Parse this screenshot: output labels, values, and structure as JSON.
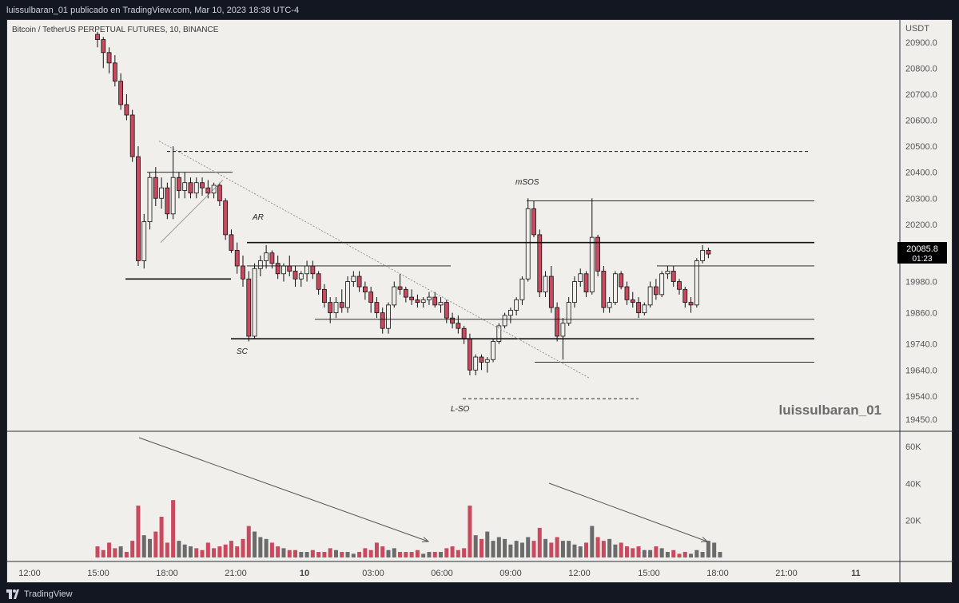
{
  "header": {
    "published": "luissulbaran_01 publicado en TradingView.com, Mar 10, 2023 18:38 UTC-4",
    "symbol_line": "Bitcoin / TetherUS PERPETUAL FUTURES, 10, BINANCE"
  },
  "footer": {
    "brand": "TradingView"
  },
  "watermark": "luissulbaran_01",
  "colors": {
    "background": "#f0efec",
    "up_candle": "#f0efec",
    "down_candle": "#c9495e",
    "vol_up": "#6b6b6b",
    "vol_down": "#c9495e",
    "level_line": "#111111",
    "price_tag": "#000000"
  },
  "price_scale": {
    "currency": "USDT",
    "ticks": [
      "20900.0",
      "20800.0",
      "20700.0",
      "20600.0",
      "20500.0",
      "20400.0",
      "20300.0",
      "20200.0",
      "20085.8",
      "19980.0",
      "19860.0",
      "19740.0",
      "19640.0",
      "19540.0",
      "19450.0"
    ],
    "last_price": "20085.8",
    "countdown": "01:23"
  },
  "volume_scale": {
    "ticks": [
      "60K",
      "40K",
      "20K"
    ]
  },
  "time_axis": {
    "ticks": [
      "12:00",
      "15:00",
      "18:00",
      "21:00",
      "10",
      "03:00",
      "06:00",
      "09:00",
      "12:00",
      "15:00",
      "18:00",
      "21:00",
      "11"
    ]
  },
  "annotations": {
    "ar": "AR",
    "sc": "SC",
    "lso": "L-SO",
    "msos": "mSOS"
  },
  "chart_data": {
    "type": "candlestick",
    "symbol": "Bitcoin / TetherUS PERPETUAL FUTURES",
    "interval": "10",
    "exchange": "BINANCE",
    "ylim": [
      19420,
      20930
    ],
    "last_price": 20085.8,
    "ohlc": [
      [
        20930,
        20940,
        20880,
        20910
      ],
      [
        20910,
        20920,
        20800,
        20860
      ],
      [
        20860,
        20880,
        20780,
        20820
      ],
      [
        20820,
        20850,
        20730,
        20750
      ],
      [
        20750,
        20780,
        20640,
        20660
      ],
      [
        20660,
        20700,
        20600,
        20620
      ],
      [
        20620,
        20640,
        20440,
        20460
      ],
      [
        20460,
        20500,
        20040,
        20060
      ],
      [
        20060,
        20240,
        20030,
        20210
      ],
      [
        20210,
        20400,
        20180,
        20380
      ],
      [
        20380,
        20420,
        20270,
        20300
      ],
      [
        20300,
        20380,
        20260,
        20340
      ],
      [
        20340,
        20360,
        20220,
        20240
      ],
      [
        20240,
        20500,
        20220,
        20380
      ],
      [
        20380,
        20400,
        20300,
        20330
      ],
      [
        20330,
        20400,
        20300,
        20360
      ],
      [
        20360,
        20380,
        20300,
        20320
      ],
      [
        20320,
        20380,
        20300,
        20360
      ],
      [
        20360,
        20380,
        20310,
        20340
      ],
      [
        20340,
        20370,
        20300,
        20320
      ],
      [
        20320,
        20360,
        20300,
        20350
      ],
      [
        20350,
        20360,
        20270,
        20290
      ],
      [
        20290,
        20300,
        20140,
        20160
      ],
      [
        20160,
        20180,
        20090,
        20100
      ],
      [
        20100,
        20130,
        20010,
        20040
      ],
      [
        20040,
        20080,
        19960,
        19990
      ],
      [
        19990,
        20020,
        19750,
        19770
      ],
      [
        19770,
        20050,
        19760,
        20030
      ],
      [
        20030,
        20080,
        20000,
        20060
      ],
      [
        20060,
        20120,
        20030,
        20090
      ],
      [
        20090,
        20100,
        20030,
        20050
      ],
      [
        20050,
        20080,
        19990,
        20010
      ],
      [
        20010,
        20050,
        19980,
        20040
      ],
      [
        20040,
        20080,
        20000,
        20020
      ],
      [
        20020,
        20040,
        19960,
        19990
      ],
      [
        19990,
        20020,
        19960,
        20010
      ],
      [
        20010,
        20060,
        19980,
        20040
      ],
      [
        20040,
        20060,
        19990,
        20010
      ],
      [
        20010,
        20020,
        19930,
        19950
      ],
      [
        19950,
        19970,
        19880,
        19900
      ],
      [
        19900,
        19920,
        19820,
        19860
      ],
      [
        19860,
        19920,
        19840,
        19900
      ],
      [
        19900,
        19950,
        19860,
        19880
      ],
      [
        19880,
        20000,
        19860,
        19980
      ],
      [
        19980,
        20020,
        19960,
        20000
      ],
      [
        20000,
        20020,
        19940,
        19960
      ],
      [
        19960,
        19980,
        19910,
        19940
      ],
      [
        19940,
        19960,
        19860,
        19900
      ],
      [
        19900,
        19920,
        19840,
        19860
      ],
      [
        19860,
        19880,
        19780,
        19800
      ],
      [
        19800,
        19900,
        19780,
        19890
      ],
      [
        19890,
        19980,
        19880,
        19960
      ],
      [
        19960,
        20010,
        19930,
        19950
      ],
      [
        19950,
        19960,
        19900,
        19920
      ],
      [
        19920,
        19950,
        19890,
        19910
      ],
      [
        19910,
        19930,
        19880,
        19900
      ],
      [
        19900,
        19920,
        19880,
        19910
      ],
      [
        19910,
        19940,
        19890,
        19920
      ],
      [
        19920,
        19940,
        19880,
        19890
      ],
      [
        19890,
        19920,
        19860,
        19900
      ],
      [
        19900,
        19910,
        19820,
        19840
      ],
      [
        19840,
        19860,
        19800,
        19820
      ],
      [
        19820,
        19850,
        19780,
        19800
      ],
      [
        19800,
        19810,
        19740,
        19760
      ],
      [
        19760,
        19780,
        19620,
        19640
      ],
      [
        19640,
        19700,
        19620,
        19690
      ],
      [
        19690,
        19700,
        19640,
        19670
      ],
      [
        19670,
        19690,
        19630,
        19680
      ],
      [
        19680,
        19760,
        19670,
        19750
      ],
      [
        19750,
        19820,
        19740,
        19810
      ],
      [
        19810,
        19860,
        19800,
        19850
      ],
      [
        19850,
        19880,
        19820,
        19870
      ],
      [
        19870,
        19920,
        19850,
        19910
      ],
      [
        19910,
        20000,
        19890,
        19990
      ],
      [
        19990,
        20300,
        19980,
        20260
      ],
      [
        20260,
        20290,
        20150,
        20160
      ],
      [
        20160,
        20180,
        19920,
        19940
      ],
      [
        19940,
        20020,
        19920,
        20000
      ],
      [
        20000,
        20040,
        19860,
        19880
      ],
      [
        19880,
        19900,
        19750,
        19770
      ],
      [
        19770,
        19840,
        19680,
        19820
      ],
      [
        19820,
        19920,
        19810,
        19900
      ],
      [
        19900,
        20000,
        19880,
        19980
      ],
      [
        19980,
        20030,
        19960,
        20010
      ],
      [
        20010,
        20020,
        19920,
        19940
      ],
      [
        19940,
        20300,
        19930,
        20150
      ],
      [
        20150,
        20160,
        20000,
        20020
      ],
      [
        20020,
        20040,
        19860,
        19880
      ],
      [
        19880,
        19920,
        19860,
        19900
      ],
      [
        19900,
        20020,
        19890,
        20010
      ],
      [
        20010,
        20020,
        19950,
        19960
      ],
      [
        19960,
        19980,
        19890,
        19910
      ],
      [
        19910,
        19940,
        19880,
        19900
      ],
      [
        19900,
        19920,
        19840,
        19860
      ],
      [
        19860,
        19900,
        19850,
        19890
      ],
      [
        19890,
        19980,
        19880,
        19960
      ],
      [
        19960,
        19990,
        19910,
        19930
      ],
      [
        19930,
        20020,
        19920,
        20010
      ],
      [
        20010,
        20040,
        19990,
        20020
      ],
      [
        20020,
        20040,
        19960,
        19980
      ],
      [
        19980,
        19990,
        19930,
        19950
      ],
      [
        19950,
        19960,
        19880,
        19900
      ],
      [
        19900,
        19920,
        19860,
        19890
      ],
      [
        19890,
        20070,
        19880,
        20060
      ],
      [
        20060,
        20120,
        20050,
        20100
      ],
      [
        20100,
        20110,
        20070,
        20085.8
      ]
    ],
    "volume_k": [
      6,
      4,
      8,
      5,
      6,
      3,
      9,
      28,
      12,
      10,
      14,
      22,
      8,
      31,
      9,
      7,
      6,
      5,
      4,
      8,
      5,
      6,
      7,
      9,
      6,
      10,
      17,
      14,
      11,
      10,
      8,
      6,
      5,
      4,
      4,
      3,
      3,
      4,
      3,
      3,
      5,
      4,
      3,
      3,
      2,
      3,
      5,
      4,
      8,
      6,
      4,
      5,
      3,
      3,
      3,
      4,
      2,
      3,
      3,
      3,
      5,
      6,
      4,
      5,
      28,
      12,
      10,
      14,
      9,
      11,
      10,
      7,
      9,
      8,
      11,
      9,
      16,
      10,
      8,
      11,
      9,
      9,
      7,
      6,
      8,
      17,
      11,
      9,
      10,
      7,
      8,
      6,
      5,
      6,
      4,
      4,
      6,
      5,
      3,
      4,
      2,
      3,
      2,
      4,
      3,
      9,
      8,
      3
    ],
    "volume_colors": [
      "down",
      "down",
      "down",
      "down",
      "up",
      "down",
      "down",
      "down",
      "up",
      "up",
      "down",
      "down",
      "down",
      "down",
      "up",
      "up",
      "up",
      "down",
      "down",
      "down",
      "down",
      "down",
      "down",
      "down",
      "down",
      "down",
      "down",
      "up",
      "up",
      "up",
      "down",
      "down",
      "up",
      "down",
      "down",
      "up",
      "up",
      "down",
      "down",
      "down",
      "down",
      "up",
      "down",
      "up",
      "up",
      "down",
      "down",
      "down",
      "down",
      "down",
      "up",
      "up",
      "down",
      "down",
      "down",
      "down",
      "up",
      "up",
      "down",
      "up",
      "down",
      "down",
      "down",
      "down",
      "down",
      "up",
      "down",
      "up",
      "up",
      "up",
      "up",
      "up",
      "up",
      "up",
      "up",
      "down",
      "down",
      "up",
      "down",
      "down",
      "up",
      "up",
      "up",
      "up",
      "down",
      "up",
      "down",
      "down",
      "up",
      "up",
      "down",
      "down",
      "down",
      "down",
      "up",
      "up",
      "down",
      "up",
      "up",
      "down",
      "down",
      "down",
      "up",
      "up",
      "up",
      "up",
      "up",
      "up"
    ],
    "levels": [
      {
        "price": 20130,
        "style": "solid-bold"
      },
      {
        "price": 19760,
        "style": "solid-bold"
      },
      {
        "price": 20290,
        "style": "solid"
      },
      {
        "price": 20040,
        "style": "solid"
      },
      {
        "price": 19835,
        "style": "solid"
      },
      {
        "price": 19670,
        "style": "solid"
      },
      {
        "price": 20480,
        "style": "dashed"
      },
      {
        "price": 19530,
        "style": "dashed"
      }
    ],
    "xlabel": "",
    "ylabel": ""
  }
}
